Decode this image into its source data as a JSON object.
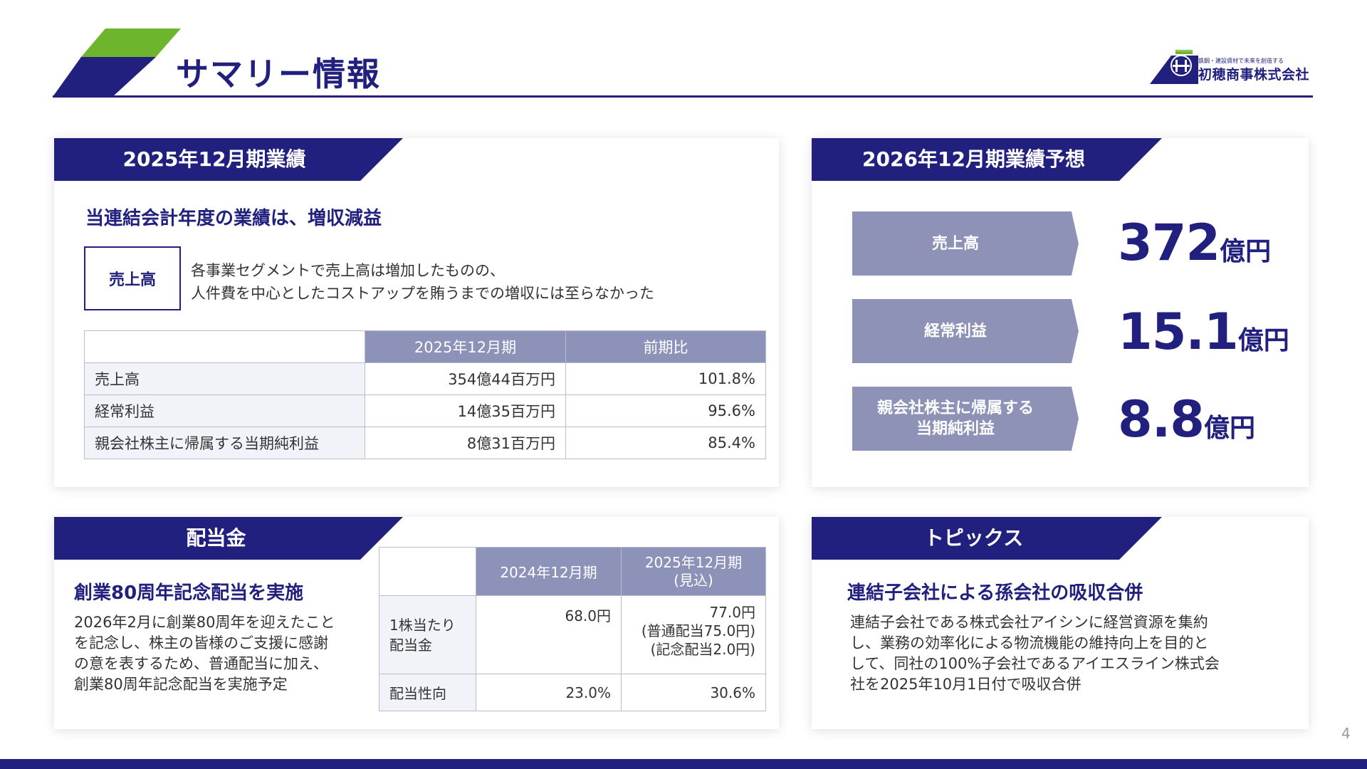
{
  "header": {
    "title": "サマリー情報",
    "logo_tagline": "鉄鋼・建設資材で未来を創造する",
    "logo_name": "初穂商事株式会社"
  },
  "results_2025": {
    "heading": "2025年12月期業績",
    "summary": "当連結会計年度の業績は、増収減益",
    "tag": "売上高",
    "description_line1": "各事業セグメントで売上高は増加したものの、",
    "description_line2": "人件費を中心としたコストアップを賄うまでの増収には至らなかった",
    "table": {
      "headers": [
        "",
        "2025年12月期",
        "前期比"
      ],
      "rows": [
        [
          "売上高",
          "354億44百万円",
          "101.8%"
        ],
        [
          "経常利益",
          "14億35百万円",
          "95.6%"
        ],
        [
          "親会社株主に帰属する当期純利益",
          "8億31百万円",
          "85.4%"
        ]
      ]
    }
  },
  "forecast_2026": {
    "heading": "2026年12月期業績予想",
    "items": [
      {
        "label_line1": "売上高",
        "label_line2": "",
        "value": "372",
        "unit": "億円"
      },
      {
        "label_line1": "経常利益",
        "label_line2": "",
        "value": "15.1",
        "unit": "億円"
      },
      {
        "label_line1": "親会社株主に帰属する",
        "label_line2": "当期純利益",
        "value": "8.8",
        "unit": "億円"
      }
    ]
  },
  "dividend": {
    "heading": "配当金",
    "summary": "創業80周年記念配当を実施",
    "description_lines": [
      "2026年2月に創業80周年を迎えたこと",
      "を記念し、株主の皆様のご支援に感謝",
      "の意を表するため、普通配当に加え、",
      "創業80周年記念配当を実施予定"
    ],
    "table": {
      "headers": [
        "",
        "2024年12月期",
        "2025年12月期",
        "(見込)"
      ],
      "row1_label_line1": "1株当たり",
      "row1_label_line2": "配当金",
      "row1_col1": "68.0円",
      "row1_col2_lines": [
        "77.0円",
        "(普通配当75.0円)",
        "(記念配当2.0円)"
      ],
      "row2_label": "配当性向",
      "row2_col1": "23.0%",
      "row2_col2": "30.6%"
    }
  },
  "topics": {
    "heading": "トピックス",
    "summary": "連結子会社による孫会社の吸収合併",
    "description_lines": [
      "連結子会社である株式会社アイシンに経営資源を集約",
      "し、業務の効率化による物流機能の維持向上を目的と",
      "して、同社の100%子会社であるアイエスライン株式会",
      "社を2025年10月1日付で吸収合併"
    ]
  },
  "page_number": "4",
  "colors": {
    "navy": "#22207e",
    "green": "#6cb52d",
    "table_header": "#8c92b8",
    "forecast_label": "#8d92b6"
  }
}
